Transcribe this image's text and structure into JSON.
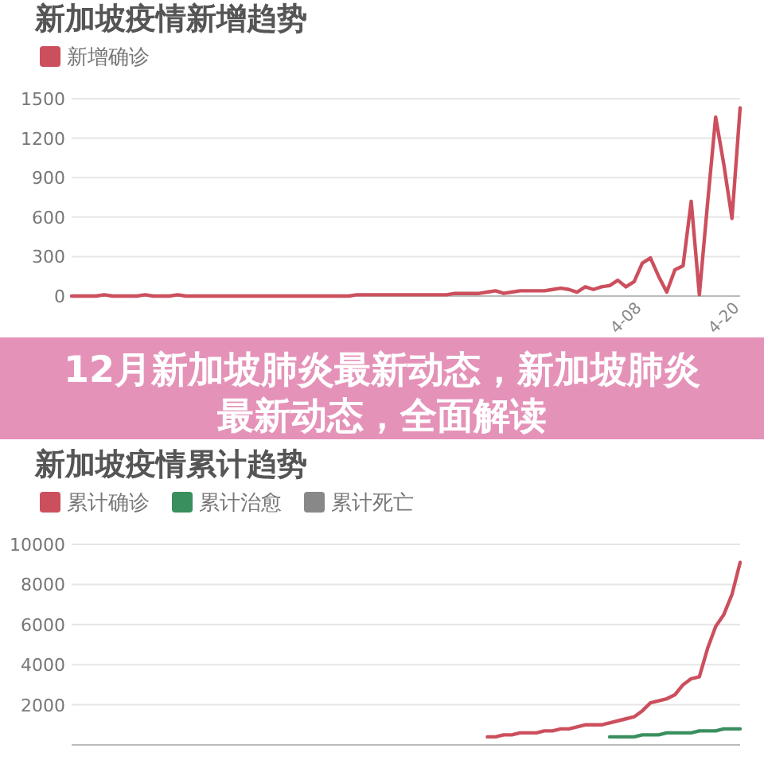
{
  "chart_data": [
    {
      "type": "line",
      "title": "新加坡疫情新增趋势",
      "categories": [
        null,
        null,
        null,
        null,
        null,
        null,
        null,
        null,
        null,
        null,
        null,
        null,
        null,
        null,
        null,
        null,
        null,
        null,
        null,
        null,
        null,
        null,
        null,
        null,
        null,
        null,
        null,
        null,
        null,
        null,
        null,
        null,
        null,
        null,
        null,
        null,
        null,
        null,
        null,
        null,
        null,
        null,
        null,
        null,
        null,
        null,
        null,
        null,
        null,
        null,
        null,
        null,
        null,
        null,
        null,
        null,
        null,
        null,
        null,
        null,
        null,
        null,
        null,
        null,
        null,
        null,
        null,
        null,
        null,
        null,
        "4-08",
        null,
        null,
        null,
        null,
        null,
        null,
        null,
        null,
        null,
        null,
        null,
        "4-20"
      ],
      "series": [
        {
          "name": "新增确诊",
          "color": "#cc4f5d",
          "values": [
            0,
            0,
            0,
            0,
            10,
            0,
            0,
            0,
            0,
            10,
            0,
            0,
            0,
            10,
            0,
            0,
            0,
            0,
            0,
            0,
            0,
            0,
            0,
            0,
            0,
            0,
            0,
            0,
            0,
            0,
            0,
            0,
            0,
            0,
            0,
            10,
            10,
            10,
            10,
            10,
            10,
            10,
            10,
            10,
            10,
            10,
            10,
            20,
            20,
            20,
            20,
            30,
            40,
            20,
            30,
            40,
            40,
            40,
            40,
            50,
            60,
            50,
            30,
            70,
            50,
            70,
            80,
            120,
            70,
            110,
            250,
            290,
            150,
            30,
            200,
            230,
            720,
            10,
            700,
            1360,
            1000,
            590,
            1430
          ]
        }
      ],
      "ylim": [
        0,
        1500
      ],
      "yticks": [
        0,
        300,
        600,
        900,
        1200,
        1500
      ],
      "grid": "y",
      "legend": "top left"
    },
    {
      "type": "other",
      "title": "12月新加坡肺炎最新动态，新加坡肺炎最新动态，全面解读"
    },
    {
      "type": "line",
      "title": "新加坡疫情累计趋势",
      "categories": [
        null,
        null,
        null,
        null,
        null,
        null,
        null,
        null,
        null,
        null,
        null,
        null,
        null,
        null,
        null,
        null,
        null,
        null,
        null,
        null,
        null,
        null,
        null,
        null,
        null,
        null,
        null,
        null,
        null,
        null,
        null,
        null,
        null,
        null,
        null,
        null,
        null,
        null,
        null,
        null,
        null,
        null,
        null,
        null,
        null,
        null,
        null,
        null,
        null,
        null,
        null,
        null,
        null,
        null,
        null,
        null,
        null,
        null,
        null,
        null,
        null,
        null,
        null,
        null,
        null,
        null,
        null,
        null,
        null,
        null,
        null,
        null,
        null,
        null,
        null,
        null,
        null,
        null,
        null,
        null,
        null,
        null,
        null
      ],
      "series": [
        {
          "name": "累计确诊",
          "color": "#cc4f5d",
          "values": [
            null,
            null,
            null,
            null,
            null,
            null,
            null,
            null,
            null,
            null,
            null,
            null,
            null,
            null,
            null,
            null,
            null,
            null,
            null,
            null,
            null,
            null,
            null,
            null,
            null,
            null,
            null,
            null,
            null,
            null,
            null,
            null,
            null,
            null,
            null,
            null,
            null,
            null,
            null,
            null,
            null,
            null,
            null,
            null,
            null,
            null,
            null,
            null,
            null,
            null,
            null,
            400,
            400,
            500,
            500,
            600,
            600,
            600,
            700,
            700,
            800,
            800,
            900,
            1000,
            1000,
            1000,
            1100,
            1200,
            1300,
            1400,
            1700,
            2100,
            2200,
            2300,
            2500,
            3000,
            3300,
            3400,
            4800,
            5900,
            6500,
            7500,
            9100
          ]
        },
        {
          "name": "累计治愈",
          "color": "#3a8f5e",
          "values": [
            null,
            null,
            null,
            null,
            null,
            null,
            null,
            null,
            null,
            null,
            null,
            null,
            null,
            null,
            null,
            null,
            null,
            null,
            null,
            null,
            null,
            null,
            null,
            null,
            null,
            null,
            null,
            null,
            null,
            null,
            null,
            null,
            null,
            null,
            null,
            null,
            null,
            null,
            null,
            null,
            null,
            null,
            null,
            null,
            null,
            null,
            null,
            null,
            null,
            null,
            null,
            null,
            null,
            null,
            null,
            null,
            null,
            null,
            null,
            null,
            null,
            null,
            null,
            null,
            null,
            null,
            400,
            400,
            400,
            400,
            500,
            500,
            500,
            600,
            600,
            600,
            600,
            700,
            700,
            700,
            800,
            800,
            800
          ]
        },
        {
          "name": "累计死亡",
          "color": "#888888",
          "values": [
            null,
            null,
            null,
            null,
            null,
            null,
            null,
            null,
            null,
            null,
            null,
            null,
            null,
            null,
            null,
            null,
            null,
            null,
            null,
            null,
            null,
            null,
            null,
            null,
            null,
            null,
            null,
            null,
            null,
            null,
            null,
            null,
            null,
            null,
            null,
            null,
            null,
            null,
            null,
            null,
            null,
            null,
            null,
            null,
            null,
            null,
            null,
            null,
            null,
            null,
            null,
            null,
            null,
            null,
            null,
            null,
            null,
            null,
            null,
            null,
            null,
            null,
            null,
            null,
            null,
            null,
            null,
            null,
            null,
            null,
            null,
            null,
            null,
            null,
            null,
            null,
            null,
            null,
            null,
            null,
            null,
            null,
            null
          ]
        }
      ],
      "ylim": [
        0,
        10000
      ],
      "yticks": [
        2000,
        4000,
        6000,
        8000,
        10000
      ],
      "grid": "y",
      "legend": "top left"
    }
  ]
}
